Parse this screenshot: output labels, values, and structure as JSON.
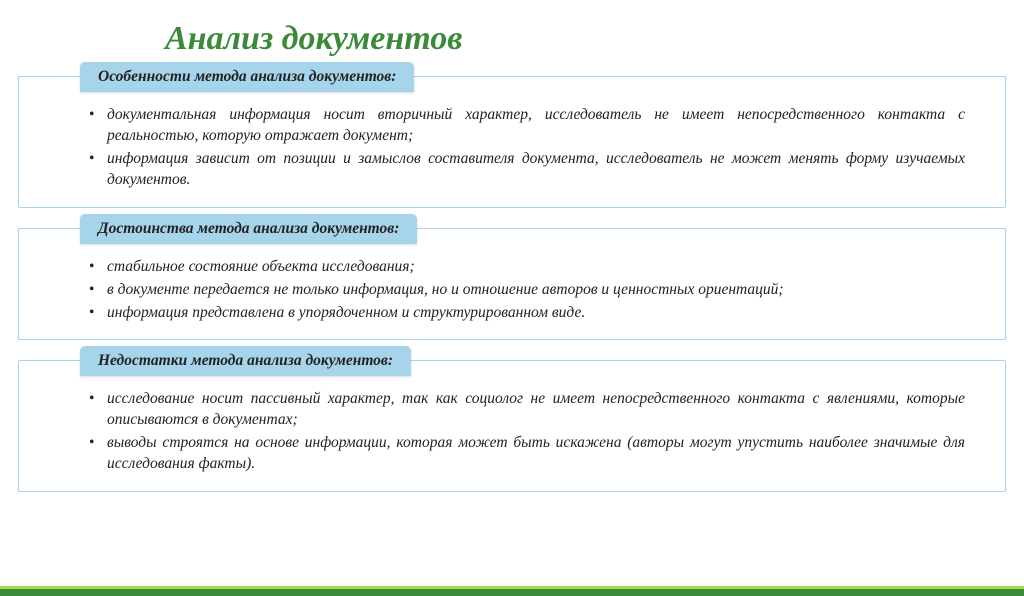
{
  "title": "Анализ документов",
  "colors": {
    "title": "#3a8a3a",
    "tab_bg": "#a6d4ea",
    "border": "#a6d4ea",
    "footer_dark": "#3a8a3a",
    "footer_light": "#a8d657",
    "text": "#222222",
    "bg": "#ffffff"
  },
  "typography": {
    "title_fontsize": 34,
    "body_fontsize": 15.5,
    "italic": true
  },
  "sections": [
    {
      "heading": "Особенности метода анализа документов:",
      "items": [
        "документальная информация носит вторичный характер, исследователь не имеет непосредственного контакта с реальностью, которую отражает документ;",
        "информация зависит от позиции и замыслов составителя документа, исследователь не может менять форму изучаемых документов."
      ]
    },
    {
      "heading": "Достоинства метода анализа документов:",
      "items": [
        "стабильное состояние объекта исследования;",
        "в документе передается не только информация, но и отношение авторов и ценностных ориентаций;",
        "информация представлена в упорядоченном и структурированном виде."
      ]
    },
    {
      "heading": "Недостатки метода анализа документов:",
      "items": [
        "исследование носит пассивный характер, так как социолог не имеет непосредственного контакта с явлениями, которые описываются в документах;",
        "выводы строятся на основе информации, которая может быть искажена (авторы могут упустить наиболее значимые для исследования факты)."
      ]
    }
  ]
}
